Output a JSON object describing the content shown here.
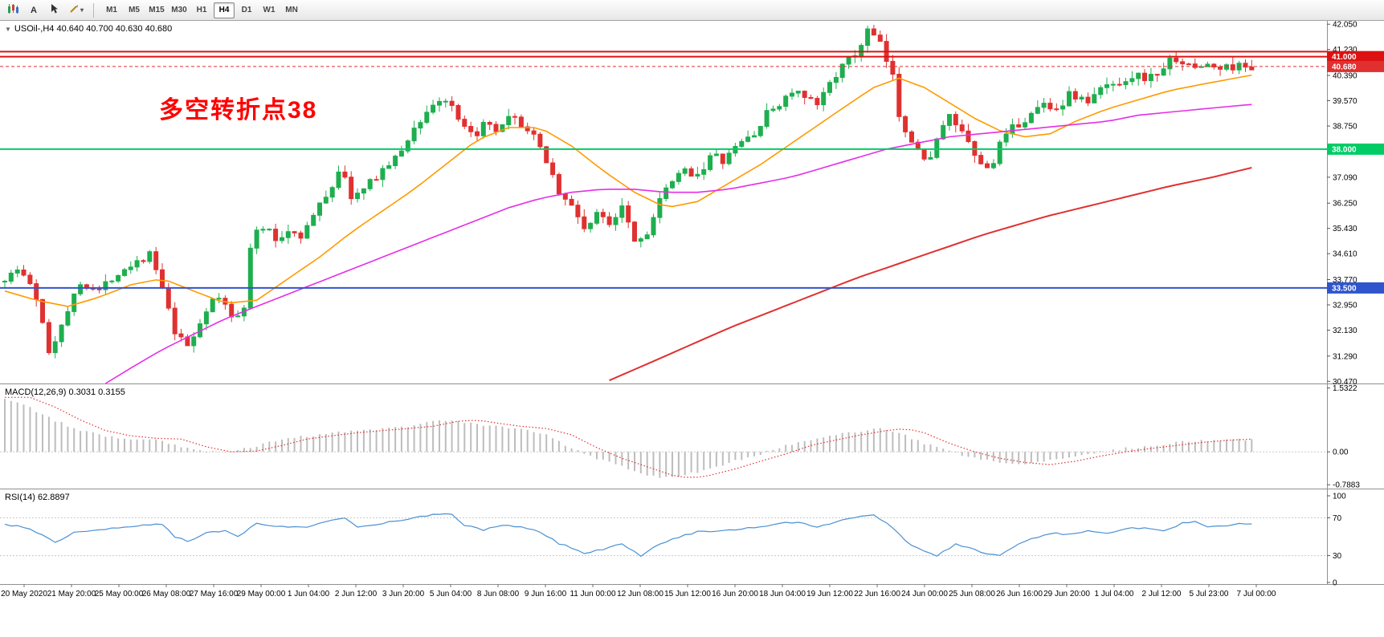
{
  "icons": {
    "collapse_arrow": "▼",
    "dropdown_caret": "▾"
  },
  "toolbar": {
    "text_tool_label": "A",
    "timeframes": [
      "M1",
      "M5",
      "M15",
      "M30",
      "H1",
      "H4",
      "D1",
      "W1",
      "MN"
    ],
    "active_timeframe": "H4"
  },
  "main_chart": {
    "header": "USOil-,H4  40.640 40.700 40.630 40.680",
    "symbol": "USOil-",
    "period": "H4",
    "ohlc": {
      "open": "40.640",
      "high": "40.700",
      "low": "40.630",
      "close": "40.680"
    },
    "annotation": {
      "text": "多空转折点38",
      "color": "#ff0000"
    },
    "y_ticks": [
      "42.050",
      "41.230",
      "40.390",
      "39.570",
      "38.750",
      "37.930",
      "37.090",
      "36.250",
      "35.430",
      "34.610",
      "33.770",
      "32.950",
      "32.130",
      "31.290",
      "30.470"
    ],
    "price_range": [
      30.4,
      42.16
    ],
    "levels": [
      {
        "price": 41.16,
        "color": "#dd1111",
        "width": 2,
        "label": ""
      },
      {
        "price": 41.0,
        "color": "#dd1111",
        "width": 2,
        "label": "41.000"
      },
      {
        "price": 38.0,
        "color": "#00cc66",
        "width": 2,
        "label": "38.000"
      },
      {
        "price": 33.5,
        "color": "#2f55cd",
        "width": 2,
        "label": "33.500"
      }
    ],
    "current_price": {
      "value": 40.68,
      "label": "40.680",
      "color": "#e03030"
    }
  },
  "macd": {
    "header": "MACD(12,26,9) 0.3031 0.3155",
    "values": [
      "0.3031",
      "0.3155"
    ],
    "y_ticks": [
      "1.5322",
      "0.00",
      "-0.7883"
    ],
    "range": [
      -0.88,
      1.62
    ]
  },
  "rsi": {
    "header": "RSI(14) 62.8897",
    "value": "62.8897",
    "y_ticks": [
      "100",
      "70",
      "30",
      "0"
    ],
    "dashed_levels": [
      70,
      30
    ]
  },
  "time_axis": {
    "labels": [
      "20 May 2020",
      "21 May 20:00",
      "25 May 00:00",
      "26 May 08:00",
      "27 May 16:00",
      "29 May 00:00",
      "1 Jun 04:00",
      "2 Jun 12:00",
      "3 Jun 20:00",
      "5 Jun 04:00",
      "8 Jun 08:00",
      "9 Jun 16:00",
      "11 Jun 00:00",
      "12 Jun 08:00",
      "15 Jun 12:00",
      "16 Jun 20:00",
      "18 Jun 04:00",
      "19 Jun 12:00",
      "22 Jun 16:00",
      "24 Jun 00:00",
      "25 Jun 08:00",
      "26 Jun 16:00",
      "29 Jun 20:00",
      "1 Jul 04:00",
      "2 Jul 12:00",
      "5 Jul 23:00",
      "7 Jul 00:00"
    ]
  },
  "colors": {
    "bull": "#1fae4f",
    "bear": "#e03131",
    "ma_orange": "#ff9a00",
    "ma_magenta": "#e62ee6",
    "ma_red": "#e03030",
    "macd_hist": "#bdbdbd",
    "macd_signal": "#e03030",
    "rsi_line": "#4a90d2",
    "scale_text": "#000000",
    "panel_border": "#909090"
  },
  "chart_data": {
    "type": "candlestick",
    "symbol": "USOil-",
    "timeframe": "H4",
    "candle_count": 199,
    "price_anchors": [
      [
        0,
        33.7
      ],
      [
        3,
        34.1
      ],
      [
        5,
        33.6
      ],
      [
        7,
        32.2
      ],
      [
        8,
        31.3
      ],
      [
        10,
        32.5
      ],
      [
        13,
        33.7
      ],
      [
        16,
        33.4
      ],
      [
        18,
        33.9
      ],
      [
        21,
        34.3
      ],
      [
        24,
        34.6
      ],
      [
        26,
        33.3
      ],
      [
        28,
        31.9
      ],
      [
        30,
        31.6
      ],
      [
        33,
        32.9
      ],
      [
        35,
        33.2
      ],
      [
        37,
        32.5
      ],
      [
        39,
        33.0
      ],
      [
        40,
        35.2
      ],
      [
        42,
        35.5
      ],
      [
        44,
        35.0
      ],
      [
        46,
        35.4
      ],
      [
        48,
        35.2
      ],
      [
        50,
        35.9
      ],
      [
        53,
        36.9
      ],
      [
        54,
        37.4
      ],
      [
        56,
        36.4
      ],
      [
        58,
        36.7
      ],
      [
        60,
        37.2
      ],
      [
        63,
        37.7
      ],
      [
        65,
        38.4
      ],
      [
        67,
        39.0
      ],
      [
        69,
        39.5
      ],
      [
        71,
        39.6
      ],
      [
        73,
        38.8
      ],
      [
        75,
        38.4
      ],
      [
        77,
        38.8
      ],
      [
        79,
        38.5
      ],
      [
        81,
        39.0
      ],
      [
        83,
        38.8
      ],
      [
        85,
        38.3
      ],
      [
        87,
        37.6
      ],
      [
        89,
        36.5
      ],
      [
        91,
        36.1
      ],
      [
        93,
        35.4
      ],
      [
        95,
        35.9
      ],
      [
        97,
        35.6
      ],
      [
        99,
        36.3
      ],
      [
        100,
        35.6
      ],
      [
        101,
        34.9
      ],
      [
        103,
        35.4
      ],
      [
        105,
        36.4
      ],
      [
        107,
        37.0
      ],
      [
        109,
        37.3
      ],
      [
        111,
        37.2
      ],
      [
        113,
        37.8
      ],
      [
        115,
        37.6
      ],
      [
        118,
        38.3
      ],
      [
        120,
        38.5
      ],
      [
        122,
        39.2
      ],
      [
        124,
        39.5
      ],
      [
        126,
        39.9
      ],
      [
        128,
        39.6
      ],
      [
        130,
        39.4
      ],
      [
        132,
        40.3
      ],
      [
        134,
        40.7
      ],
      [
        136,
        41.1
      ],
      [
        137,
        41.5
      ],
      [
        138,
        41.9
      ],
      [
        140,
        41.3
      ],
      [
        142,
        40.2
      ],
      [
        143,
        38.9
      ],
      [
        145,
        38.3
      ],
      [
        147,
        37.5
      ],
      [
        149,
        38.4
      ],
      [
        151,
        39.1
      ],
      [
        153,
        38.4
      ],
      [
        155,
        37.7
      ],
      [
        157,
        37.3
      ],
      [
        159,
        38.2
      ],
      [
        161,
        38.7
      ],
      [
        163,
        39.0
      ],
      [
        166,
        39.5
      ],
      [
        168,
        39.3
      ],
      [
        170,
        39.8
      ],
      [
        173,
        39.5
      ],
      [
        175,
        40.0
      ],
      [
        178,
        40.2
      ],
      [
        180,
        40.4
      ],
      [
        183,
        40.3
      ],
      [
        185,
        40.7
      ],
      [
        187,
        41.0
      ],
      [
        189,
        40.6
      ],
      [
        191,
        40.75
      ],
      [
        194,
        40.6
      ],
      [
        196,
        40.7
      ],
      [
        198,
        40.68
      ]
    ],
    "ma_orange_anchors": [
      [
        0,
        33.4
      ],
      [
        5,
        33.1
      ],
      [
        10,
        32.9
      ],
      [
        15,
        33.2
      ],
      [
        20,
        33.6
      ],
      [
        25,
        33.8
      ],
      [
        30,
        33.4
      ],
      [
        35,
        33.0
      ],
      [
        40,
        33.1
      ],
      [
        45,
        33.8
      ],
      [
        50,
        34.5
      ],
      [
        55,
        35.3
      ],
      [
        60,
        36.0
      ],
      [
        65,
        36.7
      ],
      [
        70,
        37.5
      ],
      [
        75,
        38.3
      ],
      [
        80,
        38.7
      ],
      [
        85,
        38.7
      ],
      [
        90,
        38.1
      ],
      [
        95,
        37.3
      ],
      [
        100,
        36.6
      ],
      [
        105,
        36.1
      ],
      [
        110,
        36.3
      ],
      [
        115,
        36.9
      ],
      [
        120,
        37.5
      ],
      [
        125,
        38.2
      ],
      [
        130,
        38.9
      ],
      [
        135,
        39.6
      ],
      [
        138,
        40.0
      ],
      [
        142,
        40.3
      ],
      [
        146,
        40.0
      ],
      [
        150,
        39.5
      ],
      [
        154,
        39.0
      ],
      [
        158,
        38.6
      ],
      [
        162,
        38.4
      ],
      [
        166,
        38.5
      ],
      [
        170,
        38.9
      ],
      [
        175,
        39.3
      ],
      [
        180,
        39.6
      ],
      [
        185,
        39.9
      ],
      [
        190,
        40.1
      ],
      [
        198,
        40.4
      ]
    ],
    "ma_magenta_anchors": [
      [
        16,
        30.4
      ],
      [
        20,
        30.9
      ],
      [
        25,
        31.5
      ],
      [
        30,
        32.0
      ],
      [
        35,
        32.5
      ],
      [
        40,
        32.9
      ],
      [
        45,
        33.3
      ],
      [
        50,
        33.7
      ],
      [
        55,
        34.1
      ],
      [
        60,
        34.5
      ],
      [
        65,
        34.9
      ],
      [
        70,
        35.3
      ],
      [
        75,
        35.7
      ],
      [
        80,
        36.1
      ],
      [
        85,
        36.4
      ],
      [
        90,
        36.6
      ],
      [
        95,
        36.7
      ],
      [
        100,
        36.7
      ],
      [
        105,
        36.6
      ],
      [
        110,
        36.6
      ],
      [
        115,
        36.7
      ],
      [
        120,
        36.9
      ],
      [
        125,
        37.1
      ],
      [
        130,
        37.4
      ],
      [
        135,
        37.7
      ],
      [
        140,
        38.0
      ],
      [
        145,
        38.2
      ],
      [
        150,
        38.4
      ],
      [
        155,
        38.5
      ],
      [
        160,
        38.6
      ],
      [
        165,
        38.7
      ],
      [
        170,
        38.8
      ],
      [
        175,
        38.9
      ],
      [
        180,
        39.1
      ],
      [
        185,
        39.2
      ],
      [
        190,
        39.3
      ],
      [
        198,
        39.45
      ]
    ],
    "ma_red_anchors": [
      [
        96,
        30.5
      ],
      [
        105,
        31.3
      ],
      [
        115,
        32.2
      ],
      [
        125,
        33.0
      ],
      [
        135,
        33.8
      ],
      [
        145,
        34.5
      ],
      [
        155,
        35.2
      ],
      [
        165,
        35.8
      ],
      [
        175,
        36.3
      ],
      [
        185,
        36.8
      ],
      [
        192,
        37.1
      ],
      [
        198,
        37.4
      ]
    ],
    "macd_anchors": [
      [
        0,
        1.28
      ],
      [
        4,
        1.05
      ],
      [
        8,
        0.75
      ],
      [
        12,
        0.5
      ],
      [
        16,
        0.38
      ],
      [
        20,
        0.32
      ],
      [
        24,
        0.3
      ],
      [
        28,
        0.12
      ],
      [
        32,
        0.0
      ],
      [
        36,
        0.02
      ],
      [
        40,
        0.15
      ],
      [
        44,
        0.3
      ],
      [
        48,
        0.38
      ],
      [
        52,
        0.45
      ],
      [
        56,
        0.5
      ],
      [
        60,
        0.55
      ],
      [
        64,
        0.6
      ],
      [
        68,
        0.72
      ],
      [
        71,
        0.75
      ],
      [
        74,
        0.68
      ],
      [
        78,
        0.6
      ],
      [
        82,
        0.55
      ],
      [
        86,
        0.4
      ],
      [
        90,
        0.1
      ],
      [
        94,
        -0.15
      ],
      [
        98,
        -0.35
      ],
      [
        102,
        -0.55
      ],
      [
        105,
        -0.62
      ],
      [
        108,
        -0.55
      ],
      [
        112,
        -0.4
      ],
      [
        116,
        -0.22
      ],
      [
        120,
        -0.05
      ],
      [
        124,
        0.15
      ],
      [
        128,
        0.28
      ],
      [
        132,
        0.4
      ],
      [
        136,
        0.5
      ],
      [
        139,
        0.55
      ],
      [
        142,
        0.45
      ],
      [
        146,
        0.2
      ],
      [
        150,
        0.0
      ],
      [
        154,
        -0.15
      ],
      [
        158,
        -0.25
      ],
      [
        162,
        -0.3
      ],
      [
        166,
        -0.22
      ],
      [
        170,
        -0.1
      ],
      [
        174,
        0.0
      ],
      [
        178,
        0.08
      ],
      [
        182,
        0.15
      ],
      [
        186,
        0.22
      ],
      [
        190,
        0.27
      ],
      [
        194,
        0.3
      ],
      [
        198,
        0.3031
      ]
    ],
    "rsi_anchors": [
      [
        0,
        63
      ],
      [
        3,
        60
      ],
      [
        6,
        52
      ],
      [
        8,
        44
      ],
      [
        11,
        54
      ],
      [
        14,
        57
      ],
      [
        18,
        59
      ],
      [
        22,
        62
      ],
      [
        25,
        63
      ],
      [
        27,
        50
      ],
      [
        29,
        45
      ],
      [
        32,
        54
      ],
      [
        35,
        56
      ],
      [
        37,
        50
      ],
      [
        40,
        64
      ],
      [
        44,
        61
      ],
      [
        48,
        60
      ],
      [
        51,
        66
      ],
      [
        54,
        70
      ],
      [
        56,
        60
      ],
      [
        60,
        64
      ],
      [
        64,
        69
      ],
      [
        68,
        73
      ],
      [
        71,
        74
      ],
      [
        73,
        62
      ],
      [
        76,
        57
      ],
      [
        79,
        62
      ],
      [
        82,
        60
      ],
      [
        85,
        55
      ],
      [
        88,
        43
      ],
      [
        90,
        38
      ],
      [
        92,
        32
      ],
      [
        95,
        37
      ],
      [
        98,
        43
      ],
      [
        100,
        34
      ],
      [
        101,
        30
      ],
      [
        103,
        39
      ],
      [
        106,
        48
      ],
      [
        110,
        55
      ],
      [
        114,
        56
      ],
      [
        118,
        59
      ],
      [
        122,
        63
      ],
      [
        126,
        66
      ],
      [
        129,
        60
      ],
      [
        132,
        66
      ],
      [
        135,
        70
      ],
      [
        138,
        73
      ],
      [
        141,
        60
      ],
      [
        143,
        45
      ],
      [
        146,
        34
      ],
      [
        148,
        30
      ],
      [
        151,
        42
      ],
      [
        153,
        38
      ],
      [
        156,
        32
      ],
      [
        158,
        31
      ],
      [
        161,
        43
      ],
      [
        164,
        50
      ],
      [
        167,
        54
      ],
      [
        169,
        52
      ],
      [
        172,
        57
      ],
      [
        175,
        54
      ],
      [
        178,
        58
      ],
      [
        181,
        60
      ],
      [
        184,
        57
      ],
      [
        187,
        64
      ],
      [
        189,
        66
      ],
      [
        191,
        61
      ],
      [
        194,
        62
      ],
      [
        196,
        64
      ],
      [
        198,
        62.9
      ]
    ]
  }
}
